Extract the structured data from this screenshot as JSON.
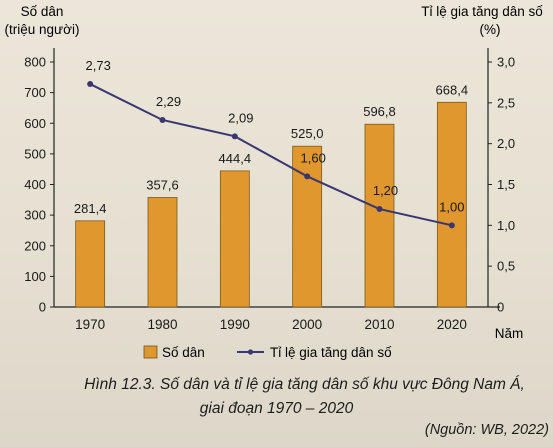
{
  "chart_data": {
    "type": "bar+line",
    "categories": [
      "1970",
      "1980",
      "1990",
      "2000",
      "2010",
      "2020"
    ],
    "xlabel": "Năm",
    "y_left": {
      "label_line1": "Số dân",
      "label_line2": "(triệu người)",
      "ticks": [
        "0",
        "100",
        "200",
        "300",
        "400",
        "500",
        "600",
        "700",
        "800"
      ],
      "ylim": [
        0,
        800
      ]
    },
    "y_right": {
      "label_line1": "Tỉ lệ gia tăng dân số",
      "label_line2": "(%)",
      "ticks": [
        "0",
        "0,5",
        "1,0",
        "1,5",
        "2,0",
        "2,5",
        "3,0"
      ],
      "ylim": [
        0,
        3.0
      ]
    },
    "series": [
      {
        "name": "Số dân",
        "kind": "bar",
        "color": "#e0972e",
        "values": [
          281.4,
          357.6,
          444.4,
          525.0,
          596.8,
          668.4
        ],
        "labels": [
          "281,4",
          "357,6",
          "444,4",
          "525,0",
          "596,8",
          "668,4"
        ]
      },
      {
        "name": "Tỉ lệ gia tăng dân số",
        "kind": "line",
        "color": "#3a3672",
        "values": [
          2.73,
          2.29,
          2.09,
          1.6,
          1.2,
          1.0
        ],
        "labels": [
          "2,73",
          "2,29",
          "2,09",
          "1,60",
          "1,20",
          "1,00"
        ]
      }
    ],
    "legend_position": "bottom"
  },
  "caption_line1": "Hình 12.3. Số dân và tỉ lệ gia tăng dân số khu vực Đông Nam Á,",
  "caption_line2": "giai đoạn 1970 – 2020",
  "source": "(Nguồn: WB, 2022)"
}
